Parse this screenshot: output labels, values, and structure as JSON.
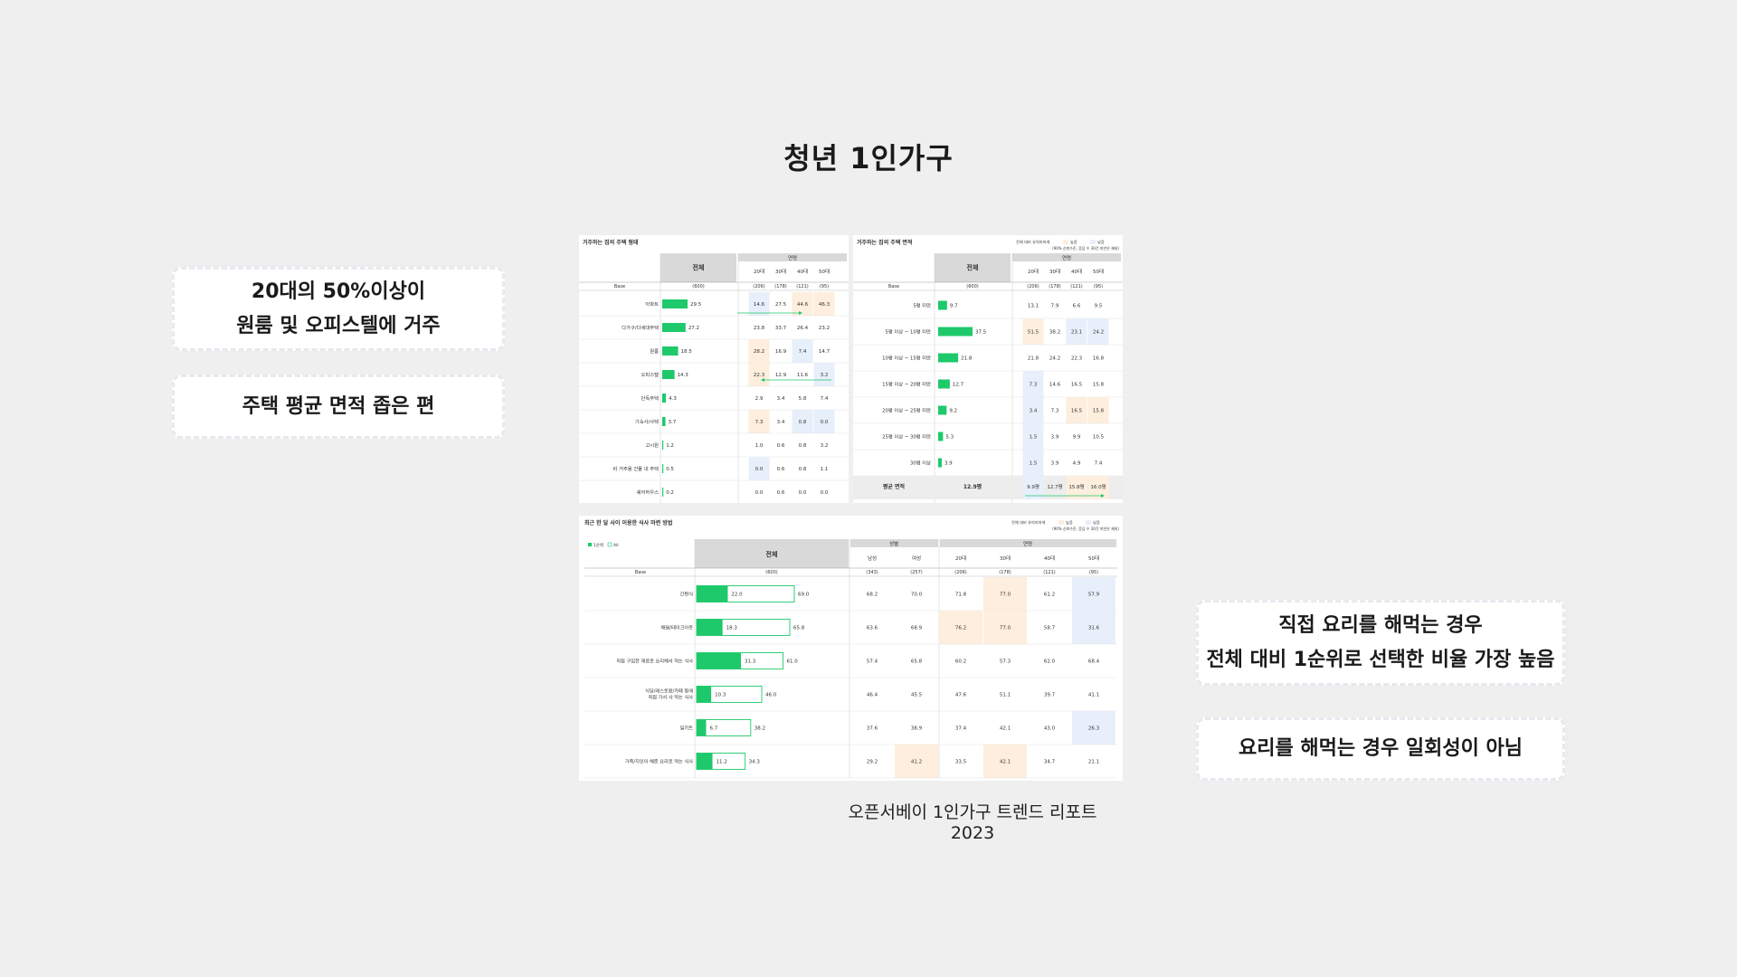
{
  "page": {
    "title": "청년 1인가구",
    "source": "오픈서베이 1인가구 트렌드 리포트 2023"
  },
  "captions": {
    "left1": [
      "20대의 50%이상이",
      "원룸 및 오피스텔에 거주"
    ],
    "left2": "주택 평균 면적 좁은 편",
    "right1": [
      "직접 요리를 해먹는 경우",
      "전체 대비 1순위로 선택한 비율 가장 높음"
    ],
    "right2": "요리를 해먹는 경우 일회성이 아님"
  },
  "colors": {
    "bar": "#1ec96b",
    "up": "#fdeedd",
    "down": "#e7effb",
    "header": "#d9d9d9",
    "arrow": "#1ec96b"
  },
  "common": {
    "total": "전체",
    "age": "연령",
    "gender": "성별",
    "base": "Base",
    "sig_label": "전체 대비 유의미하게",
    "sig_high": "높음",
    "sig_low": "낮음",
    "sig_note": "(90% 신뢰수준, 응답 수 30건 미만은 제외)"
  },
  "tables": {
    "housing": {
      "title": "거주하는 집의 주택 형태",
      "cols": [
        "20대",
        "30대",
        "40대",
        "50대"
      ],
      "bases": [
        "(206)",
        "(178)",
        "(121)",
        "(95)"
      ],
      "total_base": "(600)",
      "rows": [
        {
          "label": "아파트",
          "total": "29.5",
          "vals": [
            "14.6",
            "27.5",
            "44.6",
            "46.3"
          ],
          "hl": [
            "d",
            "",
            "u",
            "u"
          ]
        },
        {
          "label": "다가구/다세대주택",
          "total": "27.2",
          "vals": [
            "23.8",
            "33.7",
            "26.4",
            "23.2"
          ],
          "hl": [
            "",
            "",
            "",
            ""
          ]
        },
        {
          "label": "원룸",
          "total": "18.5",
          "vals": [
            "28.2",
            "16.9",
            "7.4",
            "14.7"
          ],
          "hl": [
            "u",
            "",
            "d",
            ""
          ]
        },
        {
          "label": "오피스텔",
          "total": "14.3",
          "vals": [
            "22.3",
            "12.9",
            "11.6",
            "3.2"
          ],
          "hl": [
            "u",
            "",
            "",
            "d"
          ]
        },
        {
          "label": "단독주택",
          "total": "4.3",
          "vals": [
            "2.9",
            "3.4",
            "5.8",
            "7.4"
          ],
          "hl": [
            "",
            "",
            "",
            ""
          ]
        },
        {
          "label": "기숙사/사택",
          "total": "3.7",
          "vals": [
            "7.3",
            "3.4",
            "0.8",
            "0.0"
          ],
          "hl": [
            "u",
            "",
            "d",
            "d"
          ]
        },
        {
          "label": "고시원",
          "total": "1.2",
          "vals": [
            "1.0",
            "0.6",
            "0.8",
            "3.2"
          ],
          "hl": [
            "",
            "",
            "",
            ""
          ]
        },
        {
          "label": "비 거주용 건물 내 주택",
          "total": "0.5",
          "vals": [
            "0.0",
            "0.6",
            "0.8",
            "1.1"
          ],
          "hl": [
            "d",
            "",
            "",
            ""
          ]
        },
        {
          "label": "쉐어하우스",
          "total": "0.2",
          "vals": [
            "0.0",
            "0.6",
            "0.0",
            "0.0"
          ],
          "hl": [
            "",
            "",
            "",
            ""
          ]
        }
      ]
    },
    "area": {
      "title": "거주하는 집의 주택 면적",
      "cols": [
        "20대",
        "30대",
        "40대",
        "50대"
      ],
      "bases": [
        "(206)",
        "(178)",
        "(121)",
        "(95)"
      ],
      "total_base": "(600)",
      "rows": [
        {
          "label": "5평 미만",
          "total": "9.7",
          "vals": [
            "13.1",
            "7.9",
            "6.6",
            "9.5"
          ],
          "hl": [
            "",
            "",
            "",
            ""
          ]
        },
        {
          "label": "5평 이상 ~ 10평 미만",
          "total": "37.5",
          "vals": [
            "51.5",
            "38.2",
            "23.1",
            "24.2"
          ],
          "hl": [
            "u",
            "",
            "d",
            "d"
          ]
        },
        {
          "label": "10평 이상 ~ 15평 미만",
          "total": "21.8",
          "vals": [
            "21.8",
            "24.2",
            "22.3",
            "16.8"
          ],
          "hl": [
            "",
            "",
            "",
            ""
          ]
        },
        {
          "label": "15평 이상 ~ 20평 미만",
          "total": "12.7",
          "vals": [
            "7.3",
            "14.6",
            "16.5",
            "15.8"
          ],
          "hl": [
            "d",
            "",
            "",
            ""
          ]
        },
        {
          "label": "20평 이상 ~ 25평 미만",
          "total": "9.2",
          "vals": [
            "3.4",
            "7.3",
            "16.5",
            "15.8"
          ],
          "hl": [
            "d",
            "",
            "u",
            "u"
          ]
        },
        {
          "label": "25평 이상 ~ 30평 미만",
          "total": "5.3",
          "vals": [
            "1.5",
            "3.9",
            "9.9",
            "10.5"
          ],
          "hl": [
            "d",
            "",
            "",
            ""
          ]
        },
        {
          "label": "30평 이상",
          "total": "3.9",
          "vals": [
            "1.5",
            "3.9",
            "4.9",
            "7.4"
          ],
          "hl": [
            "d",
            "",
            "",
            ""
          ]
        }
      ],
      "avg": {
        "label": "평균 면적",
        "total": "12.9평",
        "vals": [
          "9.9평",
          "12.7평",
          "15.8평",
          "16.0평"
        ],
        "hl": [
          "d",
          "",
          "u",
          "u"
        ]
      }
    },
    "meal": {
      "title": "최근 한 달 사이 이용한 식사 마련 방법",
      "legend": [
        "1순위",
        "All"
      ],
      "gcols": [
        "남성",
        "여성"
      ],
      "gbases": [
        "(343)",
        "(257)"
      ],
      "cols": [
        "20대",
        "30대",
        "40대",
        "50대"
      ],
      "bases": [
        "(206)",
        "(178)",
        "(121)",
        "(95)"
      ],
      "total_base": "(600)",
      "rows": [
        {
          "label": [
            "간편식"
          ],
          "first": "22.0",
          "all": "69.0",
          "g": [
            "68.2",
            "70.0"
          ],
          "vals": [
            "71.8",
            "77.0",
            "61.2",
            "57.9"
          ],
          "ghl": [
            "",
            ""
          ],
          "hl": [
            "",
            "u",
            "",
            "d"
          ]
        },
        {
          "label": [
            "배달/테이크아웃"
          ],
          "first": "18.3",
          "all": "65.8",
          "g": [
            "63.6",
            "68.9"
          ],
          "vals": [
            "76.2",
            "77.0",
            "58.7",
            "31.6"
          ],
          "ghl": [
            "",
            ""
          ],
          "hl": [
            "u",
            "u",
            "",
            "d"
          ]
        },
        {
          "label": [
            "직접 구입한 재료로 요리해서 먹는 식사"
          ],
          "first": "31.3",
          "all": "61.0",
          "g": [
            "57.4",
            "65.8"
          ],
          "vals": [
            "60.2",
            "57.3",
            "62.0",
            "68.4"
          ],
          "ghl": [
            "",
            ""
          ],
          "hl": [
            "",
            "",
            "",
            ""
          ]
        },
        {
          "label": [
            "식당/레스토랑/카페 등에",
            "직접 가서 사 먹는 식사"
          ],
          "first": "10.3",
          "all": "46.0",
          "g": [
            "46.4",
            "45.5"
          ],
          "vals": [
            "47.6",
            "51.1",
            "39.7",
            "41.1"
          ],
          "ghl": [
            "",
            ""
          ],
          "hl": [
            "",
            "",
            "",
            ""
          ]
        },
        {
          "label": [
            "밀키트"
          ],
          "first": "6.7",
          "all": "38.2",
          "g": [
            "37.6",
            "38.9"
          ],
          "vals": [
            "37.4",
            "42.1",
            "43.0",
            "26.3"
          ],
          "ghl": [
            "",
            ""
          ],
          "hl": [
            "",
            "",
            "",
            "d"
          ]
        },
        {
          "label": [
            "가족/지인이 해준 요리로 먹는 식사"
          ],
          "first": "11.2",
          "all": "34.3",
          "g": [
            "29.2",
            "41.2"
          ],
          "vals": [
            "33.5",
            "42.1",
            "34.7",
            "21.1"
          ],
          "ghl": [
            "",
            "u"
          ],
          "hl": [
            "",
            "u",
            "",
            ""
          ]
        }
      ]
    }
  }
}
